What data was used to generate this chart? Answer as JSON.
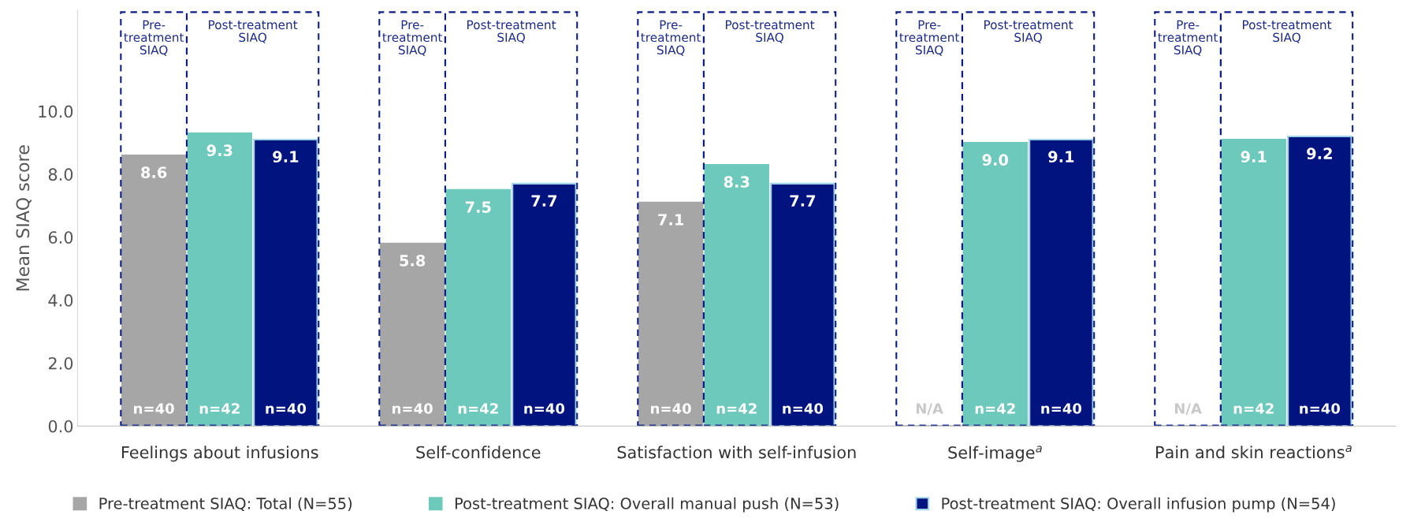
{
  "chart_data": {
    "type": "bar",
    "categories": [
      "Feelings about infusions",
      "Self-confidence",
      "Satisfaction with self-infusion",
      "Self-image$^{a}$",
      "Pain and skin reactions$^{a}$"
    ],
    "ylabel": "Mean SIAQ score",
    "ylim": [
      0,
      13.2
    ],
    "yticks": [
      {
        "value": 0,
        "label": "0.0"
      },
      {
        "value": 2,
        "label": "2.0"
      },
      {
        "value": 4,
        "label": "4.0"
      },
      {
        "value": 6,
        "label": "6.0"
      },
      {
        "value": 8,
        "label": "8.0"
      },
      {
        "value": 10,
        "label": "10.0"
      }
    ],
    "series": [
      {
        "name": "Pre-treatment SIAQ: Total (N=55)",
        "color": "#a6a6a6",
        "values": [
          8.6,
          5.8,
          7.1,
          null,
          null
        ]
      },
      {
        "name": "Post-treatment SIAQ: Overall manual push (N=53)",
        "color": "#6cc9bb",
        "values": [
          9.3,
          7.5,
          8.3,
          9.0,
          9.1
        ],
        "value_labels": [
          "9.3",
          "7.5",
          "8.3",
          "9.0",
          "9.1"
        ]
      },
      {
        "name": "Post-treatment SIAQ: Overall infusion pump (N=54)",
        "color": "#00137f",
        "values": [
          9.1,
          7.7,
          7.7,
          9.1,
          9.2
        ]
      }
    ],
    "data_labels": true,
    "annotations": [
      "Pre-treatment SIAQ",
      "Post-treatment SIAQ",
      "Pre-treatment SIAQ",
      "Post-treatment SIAQ",
      "Pre-treatment SIAQ",
      "Post-treatment SIAQ",
      "Pre-treatment SIAQ",
      "Post-treatment SIAQ",
      "Pre-treatment SIAQ",
      "Post-treatment SIAQ",
      "n=40",
      "n=40",
      "n=40",
      "N/A",
      "N/A",
      "n=42",
      "n=42",
      "n=42",
      "n=42",
      "n=42",
      "n=40",
      "n=40",
      "n=40",
      "n=40",
      "n=40"
    ],
    "legend": "bottom",
    "grid": false
  }
}
